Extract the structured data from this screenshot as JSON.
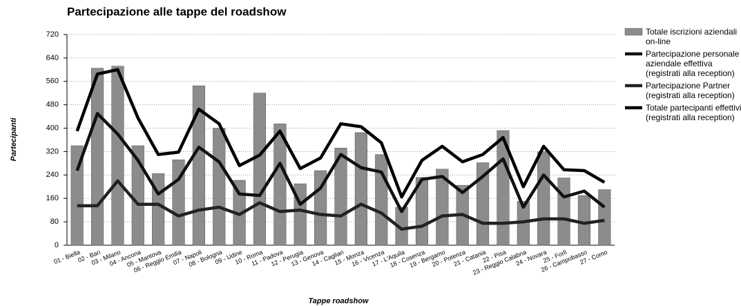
{
  "chart_data": {
    "type": "combo",
    "title": "Partecipazione alle tappe del roadshow",
    "x_label": "Tappe roadshow",
    "y_label": "Partecipanti",
    "categories": [
      "01 - Biella",
      "02 - Bari",
      "03 - Milano",
      "04 - Ancona",
      "05 - Mantova",
      "06 - Reggio Emilia",
      "07 - Napoli",
      "08 - Bologna",
      "09 - Udine",
      "10 - Roma",
      "11 - Padova",
      "12 - Perugia",
      "13 - Genova",
      "14 - Cagliari",
      "15 - Monza",
      "16 - Vicenza",
      "17 - L'Aquila",
      "18 - Cosenza",
      "19 - Bergamo",
      "20 - Potenza",
      "21 - Catania",
      "22 - Pisa",
      "23 - Reggio Calabria",
      "24 - Novara",
      "25 - Forlì",
      "26 - Campobasso",
      "27 - Como"
    ],
    "series": [
      {
        "name": "Totale iscrizioni aziendali on-line",
        "type": "bar",
        "color": "#8c8c8c",
        "values": [
          340,
          605,
          612,
          340,
          245,
          292,
          545,
          400,
          222,
          520,
          415,
          210,
          255,
          332,
          385,
          310,
          130,
          232,
          260,
          205,
          282,
          392,
          150,
          320,
          230,
          170,
          190
        ]
      },
      {
        "name": "Partecipazione personale aziendale effettiva (registrati alla reception)",
        "type": "line",
        "color": "#111111",
        "values": [
          255,
          450,
          380,
          290,
          175,
          225,
          335,
          285,
          175,
          170,
          280,
          140,
          195,
          310,
          265,
          250,
          115,
          225,
          235,
          180,
          235,
          295,
          130,
          240,
          165,
          185,
          130
        ]
      },
      {
        "name": "Partecipazione Partner (registrati alla reception)",
        "type": "line",
        "color": "#222222",
        "values": [
          135,
          135,
          220,
          140,
          140,
          100,
          120,
          130,
          105,
          145,
          115,
          120,
          105,
          100,
          140,
          110,
          55,
          65,
          100,
          105,
          75,
          75,
          80,
          90,
          90,
          75,
          85
        ]
      },
      {
        "name": "Totale partecipanti effettivi (registrati alla reception)",
        "type": "line",
        "color": "#000000",
        "values": [
          390,
          585,
          600,
          435,
          310,
          318,
          465,
          415,
          272,
          308,
          390,
          262,
          298,
          415,
          405,
          350,
          165,
          290,
          338,
          285,
          310,
          368,
          200,
          338,
          258,
          255,
          215
        ]
      }
    ],
    "ylim": [
      0,
      720
    ],
    "yticks": [
      0,
      80,
      160,
      240,
      320,
      400,
      480,
      560,
      640,
      720
    ],
    "grid": true,
    "legend": "right"
  }
}
